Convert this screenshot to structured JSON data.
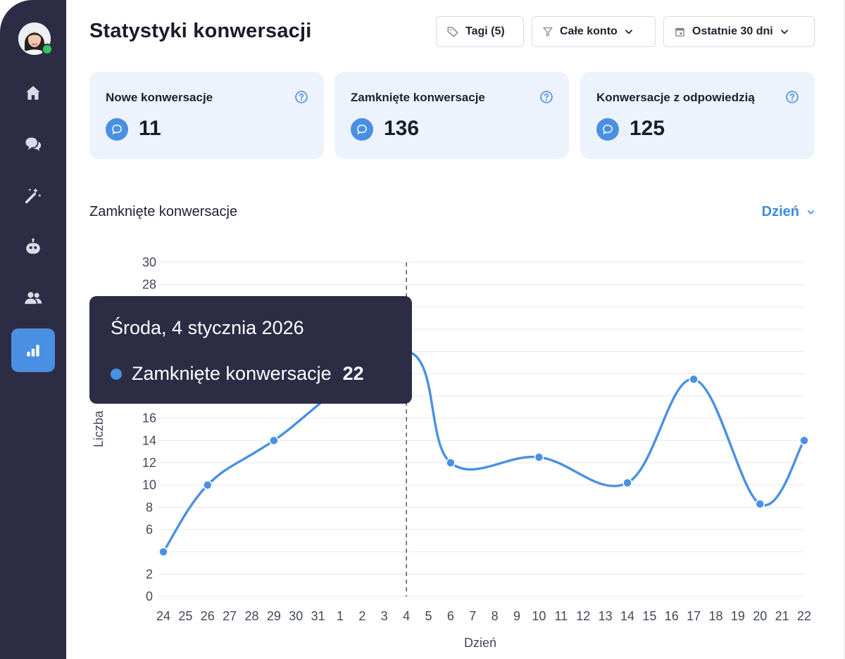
{
  "page": {
    "title": "Statystyki konwersacji"
  },
  "sidebar": {
    "items": [
      {
        "id": "home",
        "icon": "home-icon"
      },
      {
        "id": "conversations",
        "icon": "chat-bubbles-icon"
      },
      {
        "id": "automation",
        "icon": "magic-wand-icon"
      },
      {
        "id": "bot",
        "icon": "bot-icon"
      },
      {
        "id": "contacts",
        "icon": "users-icon"
      },
      {
        "id": "statistics",
        "icon": "bar-chart-icon",
        "active": true
      }
    ]
  },
  "filters": {
    "tags": "Tagi (5)",
    "account": "Całe konto",
    "date_range": "Ostatnie 30 dni"
  },
  "cards": [
    {
      "label": "Nowe konwersacje",
      "value": "11"
    },
    {
      "label": "Zamknięte konwersacje",
      "value": "136"
    },
    {
      "label": "Konwersacje z odpowiedzią",
      "value": "125"
    }
  ],
  "section": {
    "title": "Zamknięte konwersacje",
    "period": "Dzień"
  },
  "tooltip": {
    "date": "Środa, 4 stycznia 2026",
    "series": "Zamknięte konwersacje",
    "value": "22"
  },
  "colors": {
    "accent": "#4a90e2",
    "sidebar": "#2c2d45",
    "card_bg": "#edf3fc",
    "online": "#34c759"
  },
  "chart_data": {
    "type": "line",
    "xlabel": "Dzień",
    "ylabel": "Liczba",
    "categories": [
      "24",
      "25",
      "26",
      "27",
      "28",
      "29",
      "30",
      "31",
      "1",
      "2",
      "3",
      "4",
      "5",
      "6",
      "7",
      "8",
      "9",
      "10",
      "11",
      "12",
      "13",
      "14",
      "15",
      "16",
      "17",
      "18",
      "19",
      "20",
      "21",
      "22"
    ],
    "y_ticks": [
      0,
      2,
      6,
      8,
      10,
      12,
      14,
      16,
      28,
      30
    ],
    "ylim": [
      0,
      30
    ],
    "grid": true,
    "hover_category": "4",
    "series": [
      {
        "name": "Zamknięte konwersacje",
        "x": [
          "24",
          "26",
          "29",
          "4",
          "6",
          "10",
          "14",
          "17",
          "20",
          "22"
        ],
        "values": [
          4,
          10,
          14,
          22,
          12,
          12.5,
          10.2,
          19.5,
          8.3,
          14
        ]
      }
    ]
  }
}
